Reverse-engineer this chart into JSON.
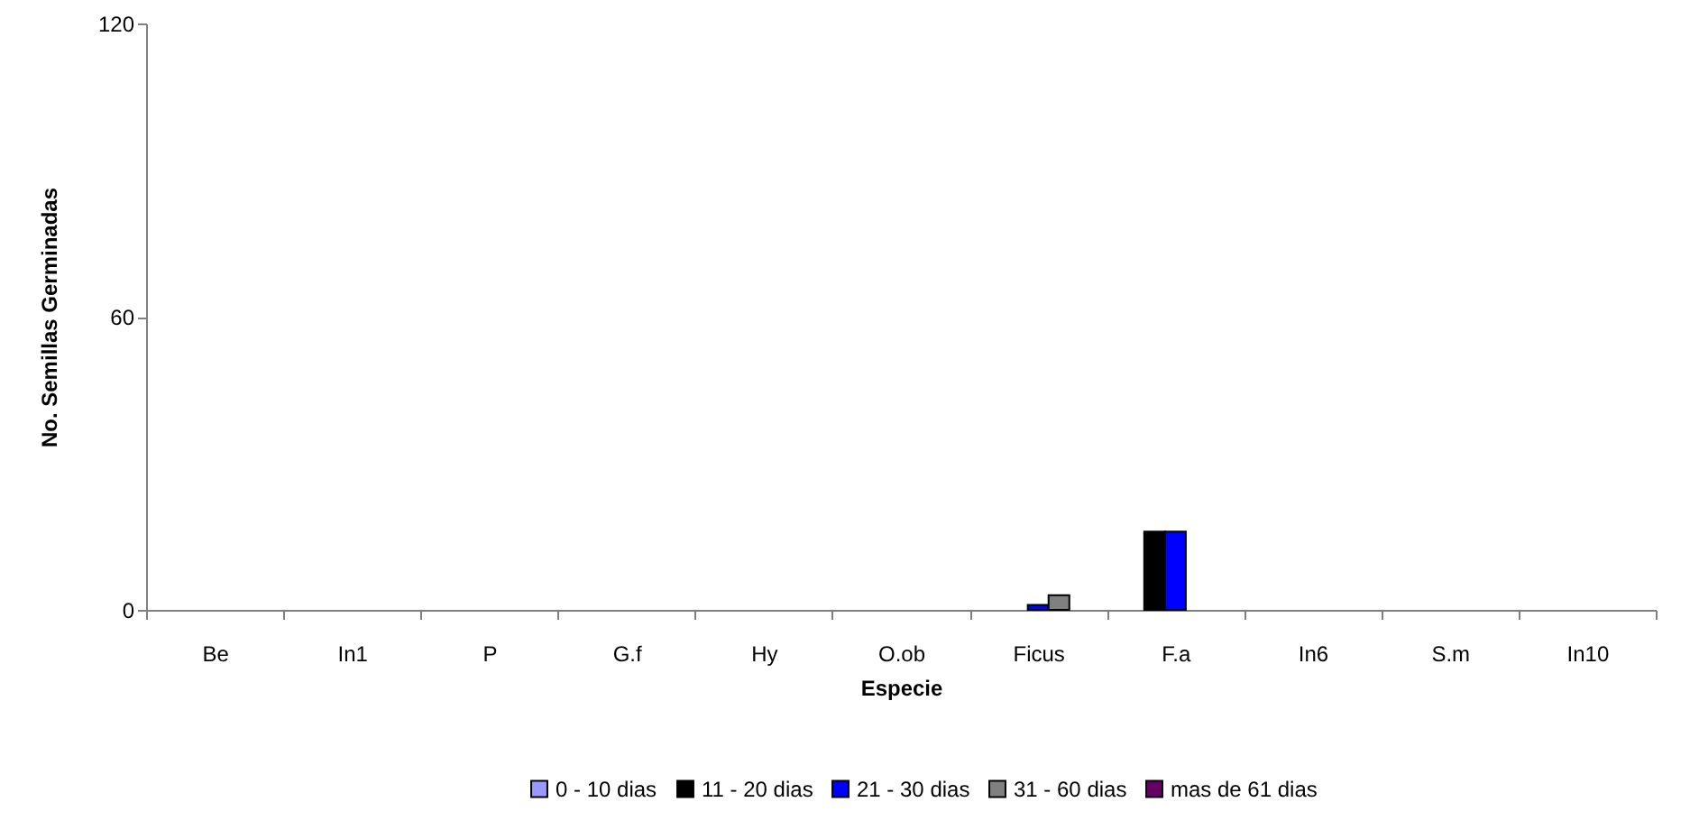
{
  "chart_data": {
    "type": "bar",
    "xlabel": "Especie",
    "ylabel": "No. Semillas Germinadas",
    "categories": [
      "Be",
      "In1",
      "P",
      "G.f",
      "Hy",
      "O.ob",
      "Ficus",
      "F.a",
      "In6",
      "S.m",
      "In10"
    ],
    "series": [
      {
        "name": "0 - 10 dias",
        "color": "#9999ff",
        "values": [
          0,
          0,
          0,
          0,
          0,
          0,
          0,
          0,
          0,
          0,
          0
        ]
      },
      {
        "name": "11 - 20 dias",
        "color": "#000000",
        "values": [
          0,
          0,
          0,
          0,
          0,
          0,
          0,
          16,
          0,
          0,
          0
        ]
      },
      {
        "name": "21 - 30 dias",
        "color": "#0000ff",
        "values": [
          0,
          0,
          0,
          0,
          0,
          0,
          1,
          16,
          0,
          0,
          0
        ]
      },
      {
        "name": "31 - 60 dias",
        "color": "#808080",
        "values": [
          0,
          0,
          0,
          0,
          0,
          0,
          3,
          0,
          0,
          0,
          0
        ]
      },
      {
        "name": "mas de 61 dias",
        "color": "#660066",
        "values": [
          0,
          0,
          0,
          0,
          0,
          0,
          0,
          0,
          0,
          0,
          0
        ]
      }
    ],
    "ylim": [
      0,
      120
    ],
    "yticks": [
      0,
      60,
      120
    ],
    "grid": false,
    "legend": "bottom"
  }
}
